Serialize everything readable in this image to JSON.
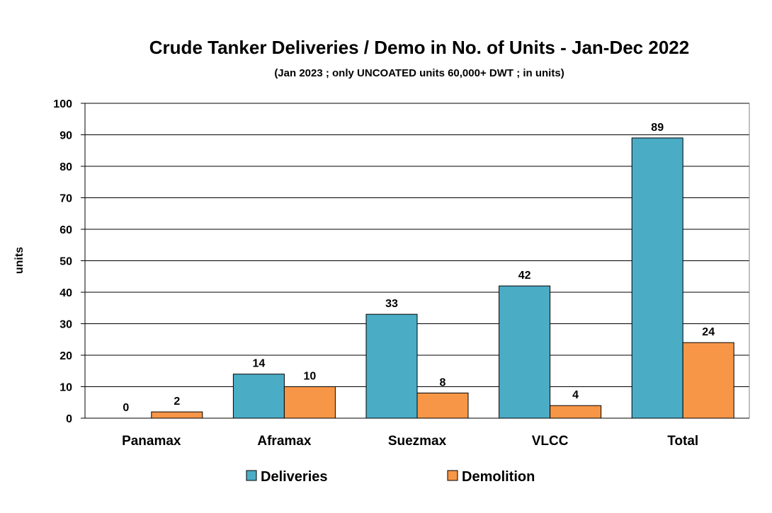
{
  "chart_data": {
    "type": "bar",
    "title": "Crude Tanker Deliveries / Demo in No. of Units - Jan-Dec 2022",
    "subtitle": "(Jan 2023 ; only UNCOATED units 60,000+ DWT ; in units)",
    "xlabel": "",
    "ylabel": "units",
    "categories": [
      "Panamax",
      "Aframax",
      "Suezmax",
      "VLCC",
      "Total"
    ],
    "series": [
      {
        "name": "Deliveries",
        "values": [
          0,
          14,
          33,
          42,
          89
        ],
        "color": "#4BACC6"
      },
      {
        "name": "Demolition",
        "values": [
          2,
          10,
          8,
          4,
          24
        ],
        "color": "#F79646"
      }
    ],
    "ylim": [
      0,
      100
    ],
    "yticks": [
      0,
      10,
      20,
      30,
      40,
      50,
      60,
      70,
      80,
      90,
      100
    ],
    "grid": true,
    "legend_position": "bottom"
  }
}
